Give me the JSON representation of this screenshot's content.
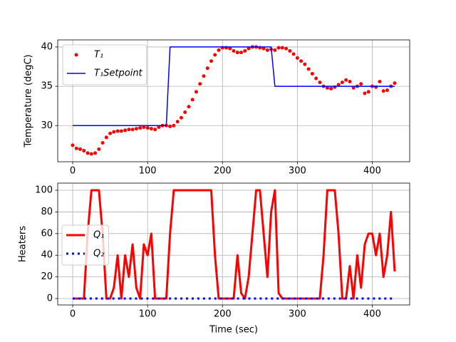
{
  "chart_data": [
    {
      "type": "line",
      "ylabel": "Temperature (degC)",
      "x": [
        0,
        5,
        10,
        15,
        20,
        25,
        30,
        35,
        40,
        45,
        50,
        55,
        60,
        65,
        70,
        75,
        80,
        85,
        90,
        95,
        100,
        105,
        110,
        115,
        120,
        125,
        130,
        135,
        140,
        145,
        150,
        155,
        160,
        165,
        170,
        175,
        180,
        185,
        190,
        195,
        200,
        205,
        210,
        215,
        220,
        225,
        230,
        235,
        240,
        245,
        250,
        255,
        260,
        265,
        270,
        275,
        280,
        285,
        290,
        295,
        300,
        305,
        310,
        315,
        320,
        325,
        330,
        335,
        340,
        345,
        350,
        355,
        360,
        365,
        370,
        375,
        380,
        385,
        390,
        395,
        400,
        405,
        410,
        415,
        420,
        425,
        430
      ],
      "series": [
        {
          "name": "T₁",
          "color": "#ff0000",
          "style": "dots",
          "linewidth": 2.5,
          "values": [
            27.5,
            27.1,
            27.0,
            26.8,
            26.5,
            26.4,
            26.5,
            27.0,
            27.8,
            28.5,
            29.0,
            29.2,
            29.3,
            29.3,
            29.4,
            29.5,
            29.5,
            29.6,
            29.7,
            29.8,
            29.7,
            29.6,
            29.5,
            29.8,
            30.0,
            30.0,
            29.9,
            30.0,
            30.5,
            31.0,
            31.7,
            32.4,
            33.3,
            34.3,
            35.3,
            36.3,
            37.3,
            38.2,
            39.0,
            39.6,
            39.9,
            39.9,
            39.8,
            39.5,
            39.3,
            39.3,
            39.5,
            39.8,
            40.0,
            40.0,
            39.9,
            39.8,
            39.6,
            39.7,
            39.6,
            39.9,
            39.9,
            39.8,
            39.5,
            39.1,
            38.6,
            38.2,
            37.8,
            37.2,
            36.6,
            36.0,
            35.5,
            35.0,
            34.8,
            34.7,
            34.9,
            35.2,
            35.5,
            35.8,
            35.6,
            34.8,
            35.0,
            35.3,
            34.1,
            34.3,
            35.0,
            34.9,
            35.6,
            34.4,
            34.5,
            35.0,
            35.4
          ]
        },
        {
          "name": "T₁Setpoint",
          "color": "#0000ff",
          "style": "line",
          "linewidth": 1.5,
          "values": [
            30,
            30,
            30,
            30,
            30,
            30,
            30,
            30,
            30,
            30,
            30,
            30,
            30,
            30,
            30,
            30,
            30,
            30,
            30,
            30,
            30,
            30,
            30,
            30,
            30,
            30,
            40,
            40,
            40,
            40,
            40,
            40,
            40,
            40,
            40,
            40,
            40,
            40,
            40,
            40,
            40,
            40,
            40,
            40,
            40,
            40,
            40,
            40,
            40,
            40,
            40,
            40,
            40,
            40,
            35,
            35,
            35,
            35,
            35,
            35,
            35,
            35,
            35,
            35,
            35,
            35,
            35,
            35,
            35,
            35,
            35,
            35,
            35,
            35,
            35,
            35,
            35,
            35,
            35,
            35,
            35,
            35,
            35,
            35,
            35,
            35,
            35
          ]
        }
      ],
      "xlim": [
        -20,
        450
      ],
      "xticks": [
        0,
        100,
        200,
        300,
        400
      ],
      "ylim": [
        25.4,
        40.9
      ],
      "yticks": [
        30,
        35,
        40
      ],
      "grid": true,
      "legend": "upper left"
    },
    {
      "type": "line",
      "xlabel": "Time (sec)",
      "ylabel": "Heaters",
      "x": [
        0,
        5,
        10,
        15,
        20,
        25,
        30,
        35,
        40,
        45,
        50,
        55,
        60,
        65,
        70,
        75,
        80,
        85,
        90,
        95,
        100,
        105,
        110,
        115,
        120,
        125,
        130,
        135,
        140,
        145,
        150,
        155,
        160,
        165,
        170,
        175,
        180,
        185,
        190,
        195,
        200,
        205,
        210,
        215,
        220,
        225,
        230,
        235,
        240,
        245,
        250,
        255,
        260,
        265,
        270,
        275,
        280,
        285,
        290,
        295,
        300,
        305,
        310,
        315,
        320,
        325,
        330,
        335,
        340,
        345,
        350,
        355,
        360,
        365,
        370,
        375,
        380,
        385,
        390,
        395,
        400,
        405,
        410,
        415,
        420,
        425,
        430
      ],
      "series": [
        {
          "name": "Q₁",
          "color": "#ff0000",
          "style": "line",
          "linewidth": 3,
          "values": [
            0,
            0,
            0,
            0,
            60,
            100,
            100,
            100,
            60,
            0,
            0,
            10,
            40,
            0,
            40,
            20,
            50,
            10,
            0,
            50,
            40,
            60,
            0,
            0,
            0,
            0,
            60,
            100,
            100,
            100,
            100,
            100,
            100,
            100,
            100,
            100,
            100,
            100,
            40,
            0,
            0,
            0,
            0,
            0,
            40,
            5,
            0,
            20,
            60,
            100,
            100,
            60,
            20,
            80,
            100,
            5,
            0,
            0,
            0,
            0,
            0,
            0,
            0,
            0,
            0,
            0,
            0,
            40,
            100,
            100,
            100,
            60,
            0,
            0,
            30,
            0,
            40,
            10,
            50,
            60,
            60,
            40,
            60,
            20,
            40,
            80,
            25
          ]
        },
        {
          "name": "Q₂",
          "color": "#0000ff",
          "style": "dotted",
          "linewidth": 3,
          "values": [
            0,
            0,
            0,
            0,
            0,
            0,
            0,
            0,
            0,
            0,
            0,
            0,
            0,
            0,
            0,
            0,
            0,
            0,
            0,
            0,
            0,
            0,
            0,
            0,
            0,
            0,
            0,
            0,
            0,
            0,
            0,
            0,
            0,
            0,
            0,
            0,
            0,
            0,
            0,
            0,
            0,
            0,
            0,
            0,
            0,
            0,
            0,
            0,
            0,
            0,
            0,
            0,
            0,
            0,
            0,
            0,
            0,
            0,
            0,
            0,
            0,
            0,
            0,
            0,
            0,
            0,
            0,
            0,
            0,
            0,
            0,
            0,
            0,
            0,
            0,
            0,
            0,
            0,
            0,
            0,
            0,
            0,
            0,
            0,
            0,
            0,
            0
          ]
        }
      ],
      "xlim": [
        -20,
        450
      ],
      "xticks": [
        0,
        100,
        200,
        300,
        400
      ],
      "ylim": [
        -5.9,
        106.6
      ],
      "yticks": [
        0,
        20,
        40,
        60,
        80,
        100
      ],
      "grid": true,
      "legend": "center left"
    }
  ]
}
